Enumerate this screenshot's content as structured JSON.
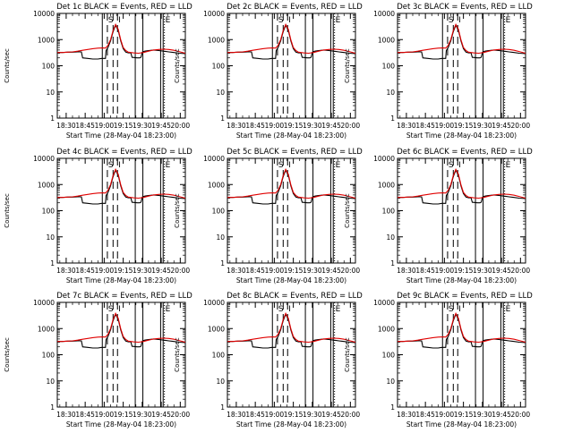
{
  "figure": {
    "background": "#ffffff",
    "ink_color": "#000000",
    "events_color": "#000000",
    "lld_color": "#e00000"
  },
  "panels": [
    {
      "title": "Det 1c BLACK = Events, RED = LLD"
    },
    {
      "title": "Det 2c BLACK = Events, RED = LLD"
    },
    {
      "title": "Det 3c BLACK = Events, RED = LLD"
    },
    {
      "title": "Det 4c BLACK = Events, RED = LLD"
    },
    {
      "title": "Det 5c BLACK = Events, RED = LLD"
    },
    {
      "title": "Det 6c BLACK = Events, RED = LLD"
    },
    {
      "title": "Det 7c BLACK = Events, RED = LLD"
    },
    {
      "title": "Det 8c BLACK = Events, RED = LLD"
    },
    {
      "title": "Det 9c BLACK = Events, RED = LLD"
    }
  ],
  "chart_data": {
    "type": "line",
    "panel_count": 9,
    "xlabel": "Start Time (28-May-04 18:23:00)",
    "ylabel": "Counts/sec",
    "x_tick_labels": [
      "18:30",
      "18:45",
      "19:00",
      "19:15",
      "19:30",
      "19:45",
      "20:00"
    ],
    "x_tick_minutes": [
      30,
      45,
      60,
      75,
      90,
      105,
      120
    ],
    "xlim_minutes": [
      23,
      124
    ],
    "y_scale": "log",
    "ylim": [
      1,
      10000
    ],
    "y_tick_labels": [
      "1",
      "10",
      "100",
      "1000",
      "10000"
    ],
    "y_tick_values": [
      1,
      10,
      100,
      1000,
      10000
    ],
    "region_labels": [
      "S",
      "I",
      "E"
    ],
    "grid": false,
    "series": [
      {
        "name": "Events",
        "color": "#000000",
        "x": [
          23,
          27,
          31,
          35,
          39,
          42,
          43,
          47,
          51,
          55,
          58,
          61,
          61.5,
          63,
          65,
          67,
          69,
          71,
          73,
          75,
          77,
          79,
          81,
          82,
          86,
          88,
          89,
          90,
          92,
          95,
          99,
          103,
          107,
          111,
          115,
          119,
          124
        ],
        "values": [
          320,
          320,
          330,
          330,
          340,
          340,
          200,
          190,
          180,
          180,
          190,
          190,
          380,
          500,
          900,
          2000,
          3500,
          2300,
          900,
          450,
          330,
          310,
          310,
          210,
          200,
          200,
          210,
          330,
          360,
          380,
          400,
          380,
          360,
          340,
          320,
          300,
          290
        ]
      },
      {
        "name": "LLD",
        "color": "#e00000",
        "x": [
          23,
          27,
          31,
          35,
          39,
          43,
          47,
          51,
          55,
          59,
          61,
          63,
          65,
          67,
          69,
          71,
          73,
          75,
          77,
          79,
          83,
          87,
          91,
          95,
          99,
          103,
          107,
          111,
          115,
          119,
          124
        ],
        "values": [
          320,
          320,
          330,
          340,
          360,
          390,
          420,
          450,
          470,
          480,
          470,
          600,
          1000,
          2200,
          3800,
          2500,
          1000,
          500,
          380,
          330,
          310,
          300,
          320,
          360,
          400,
          420,
          430,
          420,
          390,
          350,
          300
        ]
      }
    ],
    "dashed_vlines_minutes": [
      62.5,
      67,
      70.5
    ],
    "solid_vlines_minutes": [
      58.5,
      84.5,
      90.5,
      104.5,
      106.5
    ],
    "dotted_vlines_minutes": [
      107.5
    ]
  }
}
